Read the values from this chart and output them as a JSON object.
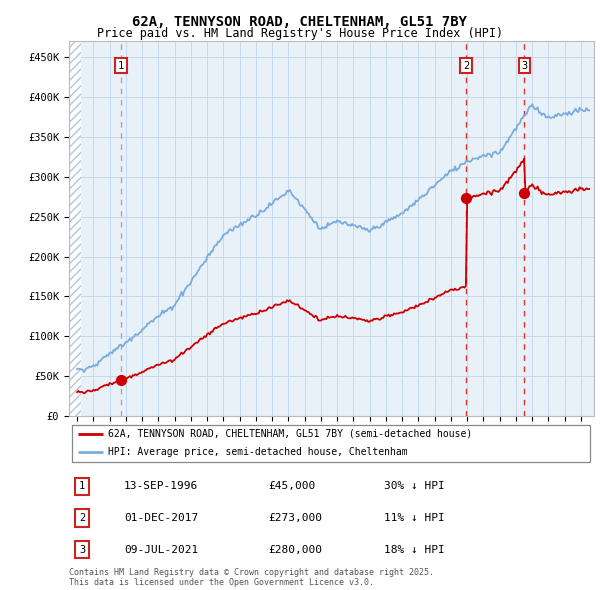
{
  "title": "62A, TENNYSON ROAD, CHELTENHAM, GL51 7BY",
  "subtitle": "Price paid vs. HM Land Registry's House Price Index (HPI)",
  "legend_line1": "62A, TENNYSON ROAD, CHELTENHAM, GL51 7BY (semi-detached house)",
  "legend_line2": "HPI: Average price, semi-detached house, Cheltenham",
  "footer": "Contains HM Land Registry data © Crown copyright and database right 2025.\nThis data is licensed under the Open Government Licence v3.0.",
  "sale_dates_label": [
    "13-SEP-1996",
    "01-DEC-2017",
    "09-JUL-2021"
  ],
  "sale_prices": [
    45000,
    273000,
    280000
  ],
  "sale_hpi_pct": [
    "30% ↓ HPI",
    "11% ↓ HPI",
    "18% ↓ HPI"
  ],
  "sale_years": [
    1996.71,
    2017.92,
    2021.52
  ],
  "hpi_color": "#7aaddc",
  "price_color": "#cc0000",
  "grid_color": "#c8d8ec",
  "bg_color": "#e8f0f8",
  "ylim": [
    0,
    470000
  ],
  "ytick_vals": [
    0,
    50000,
    100000,
    150000,
    200000,
    250000,
    300000,
    350000,
    400000,
    450000
  ],
  "ytick_labels": [
    "£0",
    "£50K",
    "£100K",
    "£150K",
    "£200K",
    "£250K",
    "£300K",
    "£350K",
    "£400K",
    "£450K"
  ],
  "xlim_start": 1993.5,
  "xlim_end": 2025.8,
  "hatch_end": 1994.25
}
